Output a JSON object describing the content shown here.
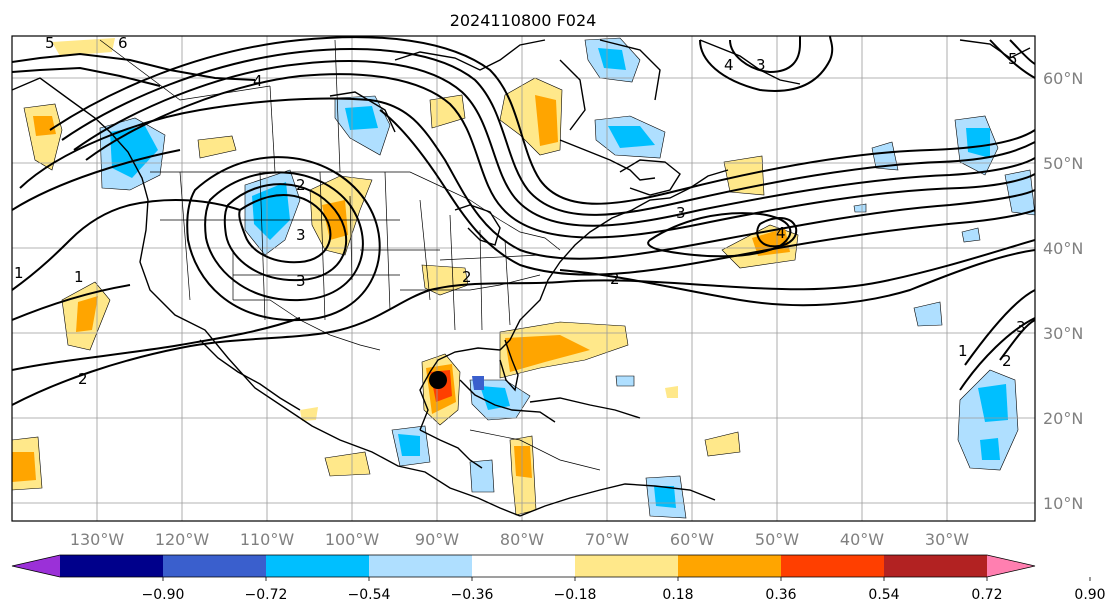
{
  "title": "2024110800 F024",
  "lon_labels": [
    "130°W",
    "120°W",
    "110°W",
    "100°W",
    "90°W",
    "80°W",
    "70°W",
    "60°W",
    "50°W",
    "40°W",
    "30°W"
  ],
  "lat_labels": [
    "60°N",
    "50°N",
    "40°N",
    "30°N",
    "20°N",
    "10°N"
  ],
  "colorbar": {
    "colors": [
      "#9b30d8",
      "#00008b",
      "#3a5fcd",
      "#00bfff",
      "#afdfff",
      "#ffffff",
      "#ffe88a",
      "#ffa500",
      "#ff3f00",
      "#b22222",
      "#ff7fb0"
    ],
    "tick_labels": [
      "−0.90",
      "−0.72",
      "−0.54",
      "−0.36",
      "−0.18",
      "0.18",
      "0.36",
      "0.54",
      "0.72",
      "0.90"
    ]
  },
  "contour_labels": [
    "5",
    "6",
    "4",
    "2",
    "3",
    "3",
    "1",
    "2",
    "2",
    "3",
    "4",
    "1",
    "2",
    "3",
    "1",
    "4",
    "3",
    "5",
    "2"
  ],
  "map_features": [
    "coastlines",
    "country-borders",
    "state-borders",
    "lat-lon-gridlines",
    "storm-marker"
  ]
}
